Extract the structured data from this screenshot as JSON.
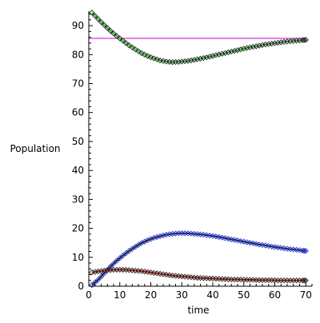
{
  "chart_data": {
    "type": "line",
    "xlabel": "time",
    "ylabel": "Population",
    "xlim": [
      0,
      72
    ],
    "ylim": [
      0,
      95
    ],
    "x_ticks": [
      0,
      10,
      20,
      30,
      40,
      50,
      60,
      70
    ],
    "y_ticks": [
      0,
      10,
      20,
      30,
      40,
      50,
      60,
      70,
      80,
      90
    ],
    "grid": false,
    "legend": "none",
    "hline": {
      "y": 85.6,
      "color": "#cc00cc"
    },
    "series": [
      {
        "role": "upper-model",
        "line_color": "#2cc02c",
        "marker_color": "#222222",
        "x": [
          1,
          3,
          5,
          7,
          9,
          11,
          13,
          15,
          17,
          19,
          21,
          23,
          25,
          27,
          29,
          31,
          33,
          35,
          37,
          39,
          41,
          43,
          45,
          47,
          49,
          51,
          53,
          55,
          57,
          59,
          61,
          63,
          65,
          67,
          69,
          70
        ],
        "y": [
          94.5,
          92.3,
          90.2,
          88.2,
          86.4,
          84.8,
          83.2,
          81.8,
          80.5,
          79.5,
          78.7,
          78.0,
          77.6,
          77.4,
          77.5,
          77.7,
          78.0,
          78.4,
          78.8,
          79.3,
          79.8,
          80.3,
          80.8,
          81.3,
          81.8,
          82.3,
          82.7,
          83.1,
          83.5,
          83.8,
          84.1,
          84.4,
          84.6,
          84.8,
          85.0,
          85.1
        ]
      },
      {
        "role": "middle-model",
        "line_color": "#111111",
        "marker_color": "#2233cc",
        "x": [
          1,
          3,
          5,
          7,
          9,
          11,
          13,
          15,
          17,
          19,
          21,
          23,
          25,
          27,
          29,
          31,
          33,
          35,
          37,
          39,
          41,
          43,
          45,
          47,
          49,
          51,
          53,
          55,
          57,
          59,
          61,
          63,
          65,
          67,
          69,
          70
        ],
        "y": [
          0.4,
          2.2,
          4.5,
          6.8,
          8.8,
          10.6,
          12.2,
          13.6,
          14.9,
          15.9,
          16.7,
          17.3,
          17.8,
          18.1,
          18.3,
          18.3,
          18.2,
          18.0,
          17.8,
          17.5,
          17.2,
          16.8,
          16.4,
          16.0,
          15.6,
          15.2,
          14.8,
          14.4,
          14.1,
          13.7,
          13.4,
          13.1,
          12.8,
          12.6,
          12.3,
          12.2
        ]
      },
      {
        "role": "lower-model",
        "line_color": "#dd1111",
        "marker_color": "#222222",
        "x": [
          1,
          3,
          5,
          7,
          9,
          11,
          13,
          15,
          17,
          19,
          21,
          23,
          25,
          27,
          29,
          31,
          33,
          35,
          37,
          39,
          41,
          43,
          45,
          47,
          49,
          51,
          53,
          55,
          57,
          59,
          61,
          63,
          65,
          67,
          69,
          70
        ],
        "y": [
          4.8,
          5.1,
          5.4,
          5.6,
          5.7,
          5.7,
          5.6,
          5.4,
          5.2,
          4.9,
          4.6,
          4.3,
          4.0,
          3.7,
          3.5,
          3.3,
          3.1,
          2.9,
          2.8,
          2.7,
          2.6,
          2.5,
          2.4,
          2.3,
          2.3,
          2.2,
          2.2,
          2.1,
          2.1,
          2.1,
          2.0,
          2.0,
          2.0,
          2.0,
          2.0,
          2.0
        ]
      }
    ]
  }
}
